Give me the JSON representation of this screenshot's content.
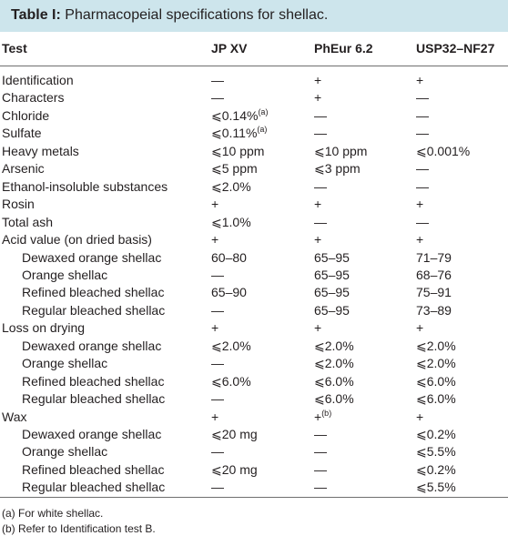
{
  "caption": {
    "label": "Table I:",
    "text": "Pharmacopeial specifications for shellac."
  },
  "columns": [
    "Test",
    "JP XV",
    "PhEur 6.2",
    "USP32–NF27"
  ],
  "rows": [
    {
      "test": "Identification",
      "indent": false,
      "jp": "—",
      "pheur": "+",
      "usp": "+"
    },
    {
      "test": "Characters",
      "indent": false,
      "jp": "—",
      "pheur": "+",
      "usp": "—"
    },
    {
      "test": "Chloride",
      "indent": false,
      "jp": "⩽0.14%",
      "jp_note": "(a)",
      "pheur": "—",
      "usp": "—"
    },
    {
      "test": "Sulfate",
      "indent": false,
      "jp": "⩽0.11%",
      "jp_note": "(a)",
      "pheur": "—",
      "usp": "—"
    },
    {
      "test": "Heavy metals",
      "indent": false,
      "jp": "⩽10 ppm",
      "pheur": "⩽10 ppm",
      "usp": "⩽0.001%"
    },
    {
      "test": "Arsenic",
      "indent": false,
      "jp": "⩽5 ppm",
      "pheur": "⩽3 ppm",
      "usp": "—"
    },
    {
      "test": "Ethanol-insoluble substances",
      "indent": false,
      "jp": "⩽2.0%",
      "pheur": "—",
      "usp": "—"
    },
    {
      "test": "Rosin",
      "indent": false,
      "jp": "+",
      "pheur": "+",
      "usp": "+"
    },
    {
      "test": "Total ash",
      "indent": false,
      "jp": "⩽1.0%",
      "pheur": "—",
      "usp": "—"
    },
    {
      "test": "Acid value (on dried basis)",
      "indent": false,
      "jp": "+",
      "pheur": "+",
      "usp": "+"
    },
    {
      "test": "Dewaxed orange shellac",
      "indent": true,
      "jp": "60–80",
      "pheur": "65–95",
      "usp": "71–79"
    },
    {
      "test": "Orange shellac",
      "indent": true,
      "jp": "—",
      "pheur": "65–95",
      "usp": "68–76"
    },
    {
      "test": "Refined bleached shellac",
      "indent": true,
      "jp": "65–90",
      "pheur": "65–95",
      "usp": "75–91"
    },
    {
      "test": "Regular bleached shellac",
      "indent": true,
      "jp": "—",
      "pheur": "65–95",
      "usp": "73–89"
    },
    {
      "test": "Loss on drying",
      "indent": false,
      "jp": "+",
      "pheur": "+",
      "usp": "+"
    },
    {
      "test": "Dewaxed orange shellac",
      "indent": true,
      "jp": "⩽2.0%",
      "pheur": "⩽2.0%",
      "usp": "⩽2.0%"
    },
    {
      "test": "Orange shellac",
      "indent": true,
      "jp": "—",
      "pheur": "⩽2.0%",
      "usp": "⩽2.0%"
    },
    {
      "test": "Refined bleached shellac",
      "indent": true,
      "jp": "⩽6.0%",
      "pheur": "⩽6.0%",
      "usp": "⩽6.0%"
    },
    {
      "test": "Regular bleached shellac",
      "indent": true,
      "jp": "—",
      "pheur": "⩽6.0%",
      "usp": "⩽6.0%"
    },
    {
      "test": "Wax",
      "indent": false,
      "jp": "+",
      "pheur": "+",
      "pheur_note": "(b)",
      "usp": "+"
    },
    {
      "test": "Dewaxed orange shellac",
      "indent": true,
      "jp": "⩽20 mg",
      "pheur": "—",
      "usp": "⩽0.2%"
    },
    {
      "test": "Orange shellac",
      "indent": true,
      "jp": "—",
      "pheur": "—",
      "usp": "⩽5.5%"
    },
    {
      "test": "Refined bleached shellac",
      "indent": true,
      "jp": "⩽20 mg",
      "pheur": "—",
      "usp": "⩽0.2%"
    },
    {
      "test": "Regular bleached shellac",
      "indent": true,
      "jp": "—",
      "pheur": "—",
      "usp": "⩽5.5%"
    }
  ],
  "footnotes": [
    "(a) For white shellac.",
    "(b) Refer to Identification test B."
  ],
  "colors": {
    "caption_bg": "#cde5ec",
    "text": "#231f20",
    "rule": "#6f6f6f"
  }
}
